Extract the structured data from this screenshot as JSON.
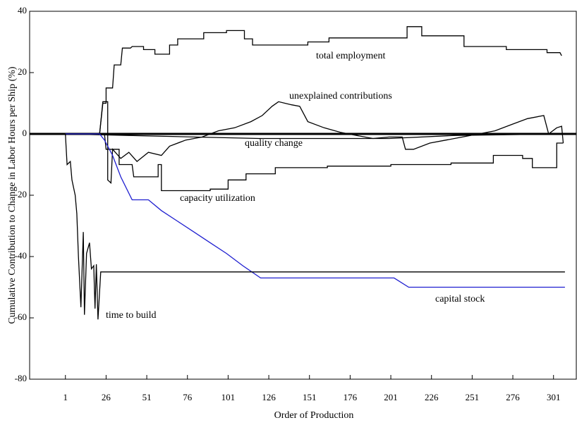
{
  "chart_data": {
    "type": "line",
    "xlabel": "Order of Production",
    "ylabel": "Cumulative Contribution to Change in Labor Hours per Ship (%)",
    "xlim": [
      -21,
      315
    ],
    "ylim": [
      -80,
      40
    ],
    "xticks": [
      1,
      26,
      51,
      76,
      101,
      126,
      151,
      176,
      201,
      226,
      251,
      276,
      301
    ],
    "yticks": [
      -80,
      -60,
      -40,
      -20,
      0,
      20,
      40
    ],
    "reference_line": 0,
    "series": [
      {
        "name": "total employment",
        "color": "#000000",
        "x": [
          1,
          22,
          24,
          26,
          26,
          30,
          31,
          35,
          36,
          41,
          42,
          49,
          49,
          56,
          56,
          65,
          65,
          70,
          70,
          86,
          86,
          100,
          100,
          111,
          111,
          116,
          116,
          150,
          150,
          163,
          163,
          211,
          211,
          220,
          220,
          246,
          246,
          272,
          272,
          297,
          297,
          305,
          306
        ],
        "values": [
          0,
          0,
          10,
          10,
          15,
          15,
          22.5,
          22.5,
          28,
          28,
          28.5,
          28.5,
          27.5,
          27.5,
          26,
          26,
          29,
          29,
          31,
          31,
          33,
          33,
          33.7,
          33.7,
          31,
          31,
          29,
          29,
          30,
          30,
          31.3,
          31.3,
          35,
          35,
          32,
          32,
          28.5,
          28.5,
          27.5,
          27.5,
          26.5,
          26.5,
          25.5
        ]
      },
      {
        "name": "unexplained contributions",
        "color": "#000000",
        "x": [
          1,
          22,
          24,
          27,
          27,
          29,
          30,
          35,
          40,
          45,
          52,
          60,
          65,
          75,
          85,
          95,
          105,
          115,
          122,
          128,
          132,
          140,
          145,
          150,
          160,
          170,
          180,
          190,
          200,
          208,
          210,
          215,
          225,
          235,
          245,
          255,
          265,
          275,
          285,
          295,
          298,
          303,
          306,
          307
        ],
        "values": [
          0,
          0,
          10.5,
          10.5,
          -15,
          -16,
          -5,
          -8,
          -6,
          -9,
          -6,
          -7,
          -4,
          -2,
          -1,
          1,
          2,
          4,
          6,
          9,
          10.5,
          9.5,
          9,
          4,
          2,
          0.5,
          -0.5,
          -1.5,
          -1,
          -1,
          -5,
          -5,
          -3,
          -2,
          -1,
          0,
          1,
          3,
          5,
          6,
          0,
          2,
          2.5,
          -3
        ]
      },
      {
        "name": "quality change",
        "color": "#000000",
        "x": [
          1,
          40,
          120,
          200,
          240,
          308
        ],
        "values": [
          0,
          -0.5,
          -1.5,
          -1.5,
          -0.5,
          0
        ]
      },
      {
        "name": "capacity utilization",
        "color": "#000000",
        "x": [
          1,
          25,
          26,
          34,
          34,
          42,
          43,
          58,
          58,
          60,
          60,
          90,
          90,
          101,
          101,
          112,
          112,
          130,
          130,
          162,
          162,
          201,
          201,
          238,
          238,
          264,
          264,
          282,
          282,
          288,
          288,
          303,
          303,
          307
        ],
        "values": [
          0,
          0,
          -5,
          -5,
          -10,
          -10,
          -14,
          -14,
          -10,
          -10,
          -18.5,
          -18.5,
          -18,
          -18,
          -15,
          -15,
          -13,
          -13,
          -11,
          -11,
          -10.5,
          -10.5,
          -10,
          -10,
          -9.5,
          -9.5,
          -7,
          -7,
          -8,
          -8,
          -11,
          -11,
          -3,
          -3
        ]
      },
      {
        "name": "capital stock",
        "color": "#1f1fd0",
        "x": [
          1,
          22,
          25,
          30,
          35,
          42,
          52,
          60,
          70,
          80,
          90,
          100,
          110,
          121,
          203,
          212,
          308
        ],
        "values": [
          0,
          0,
          -2,
          -7,
          -14,
          -21.5,
          -21.5,
          -25,
          -28.5,
          -32,
          -35.5,
          -39,
          -43,
          -47,
          -47,
          -50,
          -50
        ]
      },
      {
        "name": "time to build",
        "color": "#000000",
        "x": [
          1,
          2,
          4,
          5,
          7,
          8,
          9,
          10.5,
          12,
          12.7,
          14,
          15.8,
          17,
          18.4,
          19.2,
          20,
          21,
          22.7,
          308
        ],
        "values": [
          0,
          -10,
          -9,
          -15,
          -20,
          -26,
          -40,
          -56.5,
          -32,
          -59,
          -39,
          -35.5,
          -44,
          -43,
          -57,
          -42.5,
          -60.5,
          -45,
          -45
        ]
      }
    ]
  }
}
